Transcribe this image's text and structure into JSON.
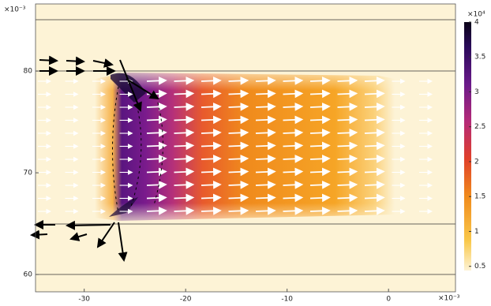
{
  "chart_data": {
    "type": "field",
    "axis_multiplier_x": "×10⁻³",
    "axis_multiplier_y": "×10⁻³",
    "colorbar_multiplier": "×10⁴",
    "xlim": [
      -34.8,
      6.6
    ],
    "xticks": [
      -30,
      -20,
      -10,
      0
    ],
    "ylim": [
      58.3,
      86.6
    ],
    "yticks": [
      60,
      70,
      80
    ],
    "clim": [
      0.44,
      4
    ],
    "cticks": [
      0.5,
      1,
      1.5,
      2,
      2.5,
      3,
      3.5,
      4
    ]
  }
}
